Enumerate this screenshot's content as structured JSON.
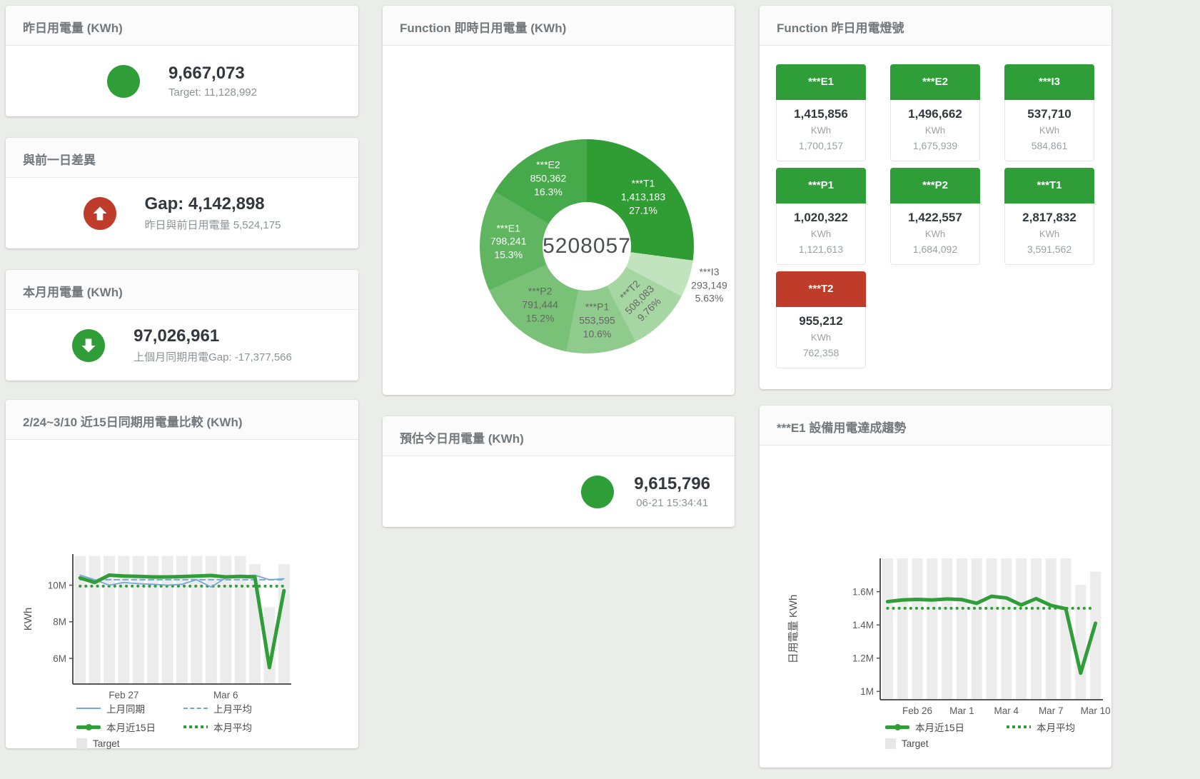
{
  "colors": {
    "green": "#2f9e38",
    "red": "#bf3b2a",
    "blue_line": "#74a7d8",
    "bar_gray": "#ececec"
  },
  "cards": {
    "yesterday": {
      "title": "昨日用電量 (KWh)",
      "value": "9,667,073",
      "subtitle": "Target: 11,128,992"
    },
    "day_gap": {
      "title": "與前一日差異",
      "value": "Gap: 4,142,898",
      "subtitle": "昨日與前日用電量 5,524,175"
    },
    "month": {
      "title": "本月用電量 (KWh)",
      "value": "97,026,961",
      "subtitle": "上個月同期用電Gap: -17,377,566"
    },
    "estimate": {
      "title": "預估今日用電量 (KWh)",
      "value": "9,615,796",
      "subtitle": "06-21 15:34:41"
    },
    "compare": {
      "title": "2/24~3/10 近15日同期用電量比較 (KWh)"
    },
    "donut": {
      "title": "Function 即時日用電量 (KWh)"
    },
    "lights": {
      "title": "Function 昨日用電燈號"
    },
    "trend": {
      "title": "***E1 設備用電達成趨勢"
    }
  },
  "lights": {
    "unit": "KWh",
    "tiles": [
      {
        "label": "***E1",
        "value": "1,415,856",
        "target": "1,700,157",
        "status": "green"
      },
      {
        "label": "***E2",
        "value": "1,496,662",
        "target": "1,675,939",
        "status": "green"
      },
      {
        "label": "***I3",
        "value": "537,710",
        "target": "584,861",
        "status": "green"
      },
      {
        "label": "***P1",
        "value": "1,020,322",
        "target": "1,121,613",
        "status": "green"
      },
      {
        "label": "***P2",
        "value": "1,422,557",
        "target": "1,684,092",
        "status": "green"
      },
      {
        "label": "***T1",
        "value": "2,817,832",
        "target": "3,591,562",
        "status": "green"
      },
      {
        "label": "***T2",
        "value": "955,212",
        "target": "762,358",
        "status": "red"
      }
    ]
  },
  "chart_data": [
    {
      "id": "compare",
      "type": "line",
      "title": "2/24~3/10 近15日同期用電量比較 (KWh)",
      "xlabel": "",
      "ylabel": "KWh",
      "unit": "millions of KWh",
      "grid": false,
      "ylim": [
        4.6,
        11.7
      ],
      "y_ticks": [
        {
          "v": 6,
          "label": "6M"
        },
        {
          "v": 8,
          "label": "8M"
        },
        {
          "v": 10,
          "label": "10M"
        }
      ],
      "x_ticks": [
        {
          "i": 3,
          "label": "Feb 27"
        },
        {
          "i": 10,
          "label": "Mar 6"
        }
      ],
      "series": [
        {
          "name": "Target",
          "kind": "bar",
          "color": "#ececec",
          "values": [
            11.6,
            11.6,
            11.6,
            11.6,
            11.6,
            11.6,
            11.6,
            11.6,
            11.6,
            11.6,
            11.6,
            11.6,
            11.15,
            8.8,
            11.15
          ]
        },
        {
          "name": "上月平均",
          "kind": "line",
          "dash": "dashed",
          "width": 2,
          "color": "#74a7d8",
          "values": [
            10.3,
            10.3,
            10.3,
            10.3,
            10.3,
            10.3,
            10.3,
            10.3,
            10.3,
            10.3,
            10.3,
            10.3,
            10.3,
            10.3,
            10.3
          ]
        },
        {
          "name": "本月平均",
          "kind": "line",
          "dash": "dotted",
          "width": 4,
          "color": "#2f9e38",
          "values": [
            9.95,
            9.95,
            9.95,
            9.95,
            9.95,
            9.95,
            9.95,
            9.95,
            9.95,
            9.95,
            9.95,
            9.95,
            9.95,
            9.95,
            9.95
          ]
        },
        {
          "name": "上月同期",
          "kind": "line",
          "dash": "solid",
          "width": 1.8,
          "color": "#74a7d8",
          "values": [
            10.55,
            10.3,
            10.0,
            10.15,
            10.08,
            10.05,
            10.0,
            10.05,
            10.3,
            9.9,
            10.4,
            10.5,
            10.55,
            10.3,
            10.35
          ]
        },
        {
          "name": "本月近15日",
          "kind": "line",
          "dash": "solid",
          "width": 5,
          "color": "#2f9e38",
          "values": [
            10.4,
            10.15,
            10.55,
            10.5,
            10.48,
            10.45,
            10.45,
            10.47,
            10.5,
            10.53,
            10.45,
            10.48,
            10.45,
            5.5,
            9.7
          ]
        }
      ],
      "legend": [
        [
          {
            "name": "上月同期",
            "swatch": "line-blue"
          },
          {
            "name": "上月平均",
            "swatch": "dash-blue"
          }
        ],
        [
          {
            "name": "本月近15日",
            "swatch": "thick-green"
          },
          {
            "name": "本月平均",
            "swatch": "dot-green"
          }
        ],
        [
          {
            "name": "Target",
            "swatch": "square-gray"
          }
        ]
      ],
      "legend_position": "bottom-left"
    },
    {
      "id": "realtime-donut",
      "type": "pie",
      "title": "Function 即時日用電量 (KWh)",
      "center_label": "5208057",
      "slices": [
        {
          "name": "***T1",
          "value": "1,413,183",
          "pct": 27.1,
          "pct_label": "27.1%",
          "color": "#2f9d33",
          "label_style": "inside-white"
        },
        {
          "name": "***I3",
          "value": "293,149",
          "pct": 5.63,
          "pct_label": "5.63%",
          "color": "#c1e3bd",
          "label_style": "outside"
        },
        {
          "name": "***T2",
          "value": "508,083",
          "pct": 9.76,
          "pct_label": "9.76%",
          "color": "#a6d7a3",
          "label_style": "inside-rotated"
        },
        {
          "name": "***P1",
          "value": "553,595",
          "pct": 10.6,
          "pct_label": "10.6%",
          "color": "#8fcb8c",
          "label_style": "inside-gray"
        },
        {
          "name": "***P2",
          "value": "791,444",
          "pct": 15.2,
          "pct_label": "15.2%",
          "color": "#79c177",
          "label_style": "inside-gray"
        },
        {
          "name": "***E1",
          "value": "798,241",
          "pct": 15.3,
          "pct_label": "15.3%",
          "color": "#60b561",
          "label_style": "inside-white"
        },
        {
          "name": "***E2",
          "value": "850,362",
          "pct": 16.3,
          "pct_label": "16.3%",
          "color": "#46aa4a",
          "label_style": "inside-white"
        }
      ]
    },
    {
      "id": "trend",
      "type": "line",
      "title": "***E1 設備用電達成趨勢",
      "xlabel": "",
      "ylabel": "日用電量 KWh",
      "unit": "millions of KWh",
      "grid": false,
      "ylim": [
        0.95,
        1.8
      ],
      "y_ticks": [
        {
          "v": 1,
          "label": "1M"
        },
        {
          "v": 1.2,
          "label": "1.2M"
        },
        {
          "v": 1.4,
          "label": "1.4M"
        },
        {
          "v": 1.6,
          "label": "1.6M"
        }
      ],
      "x_ticks": [
        {
          "i": 2,
          "label": "Feb 26"
        },
        {
          "i": 5,
          "label": "Mar 1"
        },
        {
          "i": 8,
          "label": "Mar 4"
        },
        {
          "i": 11,
          "label": "Mar 7"
        },
        {
          "i": 14,
          "label": "Mar 10"
        }
      ],
      "series": [
        {
          "name": "Target",
          "kind": "bar",
          "color": "#ececec",
          "values": [
            1.8,
            1.8,
            1.8,
            1.8,
            1.8,
            1.8,
            1.8,
            1.8,
            1.8,
            1.8,
            1.8,
            1.8,
            1.8,
            1.64,
            1.72
          ]
        },
        {
          "name": "本月平均",
          "kind": "line",
          "dash": "dotted",
          "width": 4,
          "color": "#2f9e38",
          "values": [
            1.5,
            1.5,
            1.5,
            1.5,
            1.5,
            1.5,
            1.5,
            1.5,
            1.5,
            1.5,
            1.5,
            1.5,
            1.5,
            1.5,
            1.5
          ]
        },
        {
          "name": "本月近15日",
          "kind": "line",
          "dash": "solid",
          "width": 5,
          "color": "#2f9e38",
          "values": [
            1.54,
            1.55,
            1.553,
            1.55,
            1.556,
            1.552,
            1.53,
            1.572,
            1.562,
            1.52,
            1.558,
            1.517,
            1.497,
            1.11,
            1.41
          ]
        }
      ],
      "legend": [
        [
          {
            "name": "本月近15日",
            "swatch": "thick-green"
          },
          {
            "name": "本月平均",
            "swatch": "dot-green"
          }
        ],
        [
          {
            "name": "Target",
            "swatch": "square-gray"
          }
        ]
      ],
      "legend_position": "bottom-center"
    }
  ]
}
